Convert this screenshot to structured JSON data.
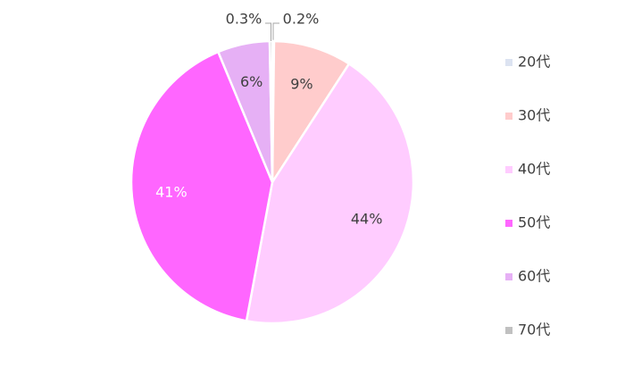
{
  "chart_data": {
    "type": "pie",
    "categories": [
      "20代",
      "30代",
      "40代",
      "50代",
      "60代",
      "70代"
    ],
    "values": [
      0.2,
      9,
      44,
      41,
      6,
      0.3
    ],
    "value_labels": [
      "0.2%",
      "9%",
      "44%",
      "41%",
      "6%",
      "0.3%"
    ],
    "colors": [
      "#dce3f1",
      "#ffcccc",
      "#ffccff",
      "#ff66ff",
      "#e6b0f5",
      "#c0c0c0"
    ],
    "legend": "right"
  }
}
